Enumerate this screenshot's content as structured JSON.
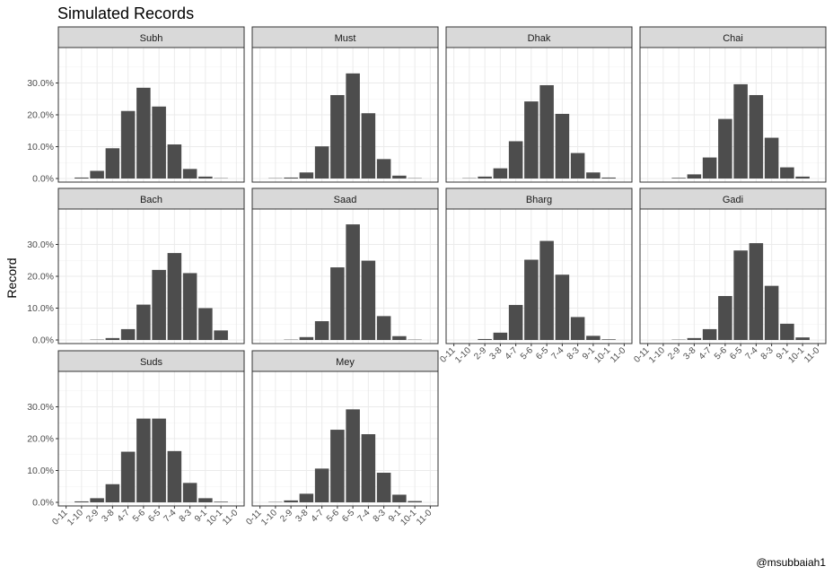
{
  "chart_data": {
    "type": "bar",
    "title": "Simulated Records",
    "ylabel": "Record",
    "xlabel": "",
    "credit": "@msubbaiah1",
    "bar_color": "#4d4d4d",
    "strip_color": "#d9d9d9",
    "grid": true,
    "ylim": [
      0,
      0.4
    ],
    "y_ticks": [
      0,
      0.1,
      0.2,
      0.3
    ],
    "y_tick_labels": [
      "0.0%",
      "10.0%",
      "20.0%",
      "30.0%"
    ],
    "categories": [
      "0-11",
      "1-10",
      "2-9",
      "3-8",
      "4-7",
      "5-6",
      "6-5",
      "7-4",
      "8-3",
      "9-1",
      "10-1",
      "11-0"
    ],
    "panels": [
      {
        "name": "Subh",
        "values": [
          0.0,
          0.003,
          0.024,
          0.095,
          0.212,
          0.285,
          0.226,
          0.107,
          0.03,
          0.006,
          0.001,
          0.0
        ]
      },
      {
        "name": "Must",
        "values": [
          0.0,
          0.001,
          0.003,
          0.019,
          0.101,
          0.262,
          0.33,
          0.205,
          0.061,
          0.009,
          0.001,
          0.0
        ]
      },
      {
        "name": "Dhak",
        "values": [
          0.0,
          0.001,
          0.006,
          0.032,
          0.117,
          0.242,
          0.293,
          0.203,
          0.08,
          0.019,
          0.003,
          0.0
        ]
      },
      {
        "name": "Chai",
        "values": [
          0.0,
          0.0,
          0.002,
          0.013,
          0.066,
          0.187,
          0.296,
          0.262,
          0.128,
          0.035,
          0.006,
          0.0
        ]
      },
      {
        "name": "Bach",
        "values": [
          0.0,
          0.0,
          0.001,
          0.006,
          0.034,
          0.111,
          0.22,
          0.273,
          0.21,
          0.1,
          0.03,
          0.0
        ]
      },
      {
        "name": "Saad",
        "values": [
          0.0,
          0.0,
          0.001,
          0.009,
          0.059,
          0.228,
          0.363,
          0.249,
          0.075,
          0.012,
          0.001,
          0.0
        ]
      },
      {
        "name": "Bharg",
        "values": [
          0.0,
          0.0,
          0.003,
          0.023,
          0.11,
          0.252,
          0.311,
          0.205,
          0.072,
          0.013,
          0.002,
          0.0
        ]
      },
      {
        "name": "Gadi",
        "values": [
          0.0,
          0.0,
          0.001,
          0.006,
          0.034,
          0.138,
          0.281,
          0.304,
          0.17,
          0.051,
          0.008,
          0.0
        ]
      },
      {
        "name": "Suds",
        "values": [
          0.0,
          0.003,
          0.013,
          0.057,
          0.159,
          0.263,
          0.263,
          0.161,
          0.061,
          0.013,
          0.002,
          0.0
        ]
      },
      {
        "name": "Mey",
        "values": [
          0.0,
          0.001,
          0.006,
          0.027,
          0.106,
          0.228,
          0.292,
          0.214,
          0.093,
          0.024,
          0.004,
          0.0
        ]
      }
    ]
  }
}
